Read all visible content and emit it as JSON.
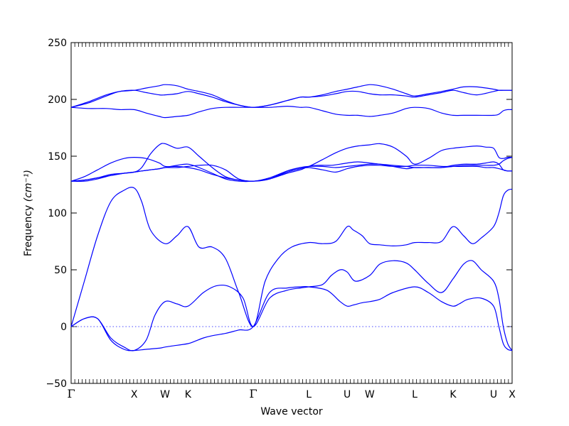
{
  "chart_data": {
    "type": "line",
    "xlabel": "Wave vector",
    "ylabel": "Frequency",
    "ylabel_unit": "(cm⁻¹)",
    "ylim": [
      -50,
      250
    ],
    "yticks": [
      -50,
      0,
      50,
      100,
      150,
      200,
      250
    ],
    "ytick_labels": [
      "−50",
      "0",
      "50",
      "100",
      "150",
      "200",
      "250"
    ],
    "xlim": [
      0,
      10
    ],
    "qpoints": [
      {
        "label": "Γ",
        "x": 0.0
      },
      {
        "label": "X",
        "x": 1.43
      },
      {
        "label": "W",
        "x": 2.13
      },
      {
        "label": "K",
        "x": 2.65
      },
      {
        "label": "Γ",
        "x": 4.13
      },
      {
        "label": "L",
        "x": 5.39
      },
      {
        "label": "U",
        "x": 6.26
      },
      {
        "label": "W",
        "x": 6.77
      },
      {
        "label": "L",
        "x": 7.79
      },
      {
        "label": "K",
        "x": 8.66
      },
      {
        "label": "U",
        "x": 9.58
      },
      {
        "label": "X",
        "x": 10.0
      }
    ],
    "zero_line": {
      "y": 0,
      "style": "dotted"
    },
    "series_color": "#0000ff",
    "bands": [
      {
        "x": [
          0,
          0.3,
          0.6,
          0.9,
          1.2,
          1.43,
          1.7,
          2.0,
          2.13,
          2.3,
          2.65,
          2.8,
          3.0,
          3.2,
          3.5,
          3.8,
          4.13,
          4.5,
          4.9,
          5.2,
          5.39,
          5.8,
          6.1,
          6.26,
          6.4,
          6.6,
          6.77,
          7.0,
          7.3,
          7.79,
          8.1,
          8.4,
          8.66,
          8.8,
          9.0,
          9.3,
          9.58,
          9.7,
          9.8,
          9.9,
          10.0
        ],
        "values": [
          0,
          7,
          7,
          -12,
          -20,
          -21,
          -20,
          -19,
          -18,
          -17,
          -15,
          -13,
          -10,
          -8,
          -6,
          -3,
          0,
          30,
          34,
          35,
          35,
          32,
          22,
          18,
          19,
          21,
          22,
          24,
          30,
          35,
          30,
          22,
          18,
          20,
          24,
          25,
          18,
          0,
          -15,
          -20,
          -21
        ]
      },
      {
        "x": [
          0,
          0.3,
          0.6,
          0.9,
          1.2,
          1.43,
          1.7,
          1.9,
          2.13,
          2.4,
          2.65,
          3.0,
          3.3,
          3.6,
          3.9,
          4.13,
          4.5,
          4.9,
          5.2,
          5.39,
          5.7,
          5.9,
          6.1,
          6.26,
          6.45,
          6.77,
          7.0,
          7.3,
          7.6,
          7.79,
          8.1,
          8.4,
          8.66,
          8.9,
          9.1,
          9.3,
          9.58,
          9.7,
          9.8,
          9.9,
          10.0
        ],
        "values": [
          0,
          7,
          7,
          -10,
          -18,
          -21,
          -12,
          10,
          22,
          20,
          18,
          30,
          36,
          35,
          25,
          0,
          25,
          32,
          34,
          35,
          37,
          45,
          50,
          48,
          40,
          45,
          55,
          58,
          56,
          50,
          38,
          30,
          42,
          55,
          58,
          50,
          40,
          25,
          0,
          -15,
          -21
        ]
      },
      {
        "x": [
          0,
          0.3,
          0.6,
          0.9,
          1.2,
          1.43,
          1.6,
          1.8,
          2.13,
          2.4,
          2.65,
          2.9,
          3.2,
          3.5,
          3.8,
          4.13,
          4.4,
          4.7,
          5.0,
          5.39,
          5.7,
          6.0,
          6.26,
          6.4,
          6.6,
          6.77,
          7.0,
          7.3,
          7.6,
          7.79,
          8.1,
          8.4,
          8.66,
          8.9,
          9.1,
          9.3,
          9.58,
          9.7,
          9.8,
          9.9,
          10.0
        ],
        "values": [
          0,
          40,
          80,
          110,
          120,
          122,
          110,
          85,
          73,
          80,
          88,
          70,
          70,
          60,
          30,
          0,
          40,
          60,
          70,
          74,
          73,
          75,
          88,
          85,
          80,
          73,
          72,
          71,
          72,
          74,
          74,
          75,
          88,
          80,
          73,
          78,
          88,
          100,
          115,
          120,
          121
        ]
      },
      {
        "x": [
          0,
          0.3,
          0.6,
          0.9,
          1.2,
          1.43,
          1.6,
          1.8,
          2.0,
          2.13,
          2.4,
          2.65,
          2.9,
          3.2,
          3.5,
          3.8,
          4.13,
          4.5,
          4.9,
          5.2,
          5.39,
          5.7,
          6.0,
          6.26,
          6.5,
          6.77,
          7.0,
          7.3,
          7.6,
          7.79,
          8.1,
          8.4,
          8.66,
          8.9,
          9.2,
          9.4,
          9.58,
          9.7,
          9.8,
          9.9,
          10.0
        ],
        "values": [
          128,
          128,
          130,
          133,
          135,
          136,
          137,
          138,
          139,
          140,
          140,
          141,
          142,
          142,
          138,
          130,
          128,
          130,
          137,
          140,
          141,
          141,
          140,
          141,
          142,
          143,
          143,
          142,
          141,
          140,
          140,
          140,
          142,
          143,
          143,
          144,
          145,
          143,
          138,
          137,
          137
        ]
      },
      {
        "x": [
          0,
          0.3,
          0.6,
          0.9,
          1.2,
          1.43,
          1.6,
          1.8,
          2.0,
          2.13,
          2.4,
          2.65,
          2.9,
          3.2,
          3.5,
          3.8,
          4.13,
          4.5,
          4.9,
          5.2,
          5.39,
          5.7,
          6.0,
          6.26,
          6.5,
          6.77,
          7.0,
          7.3,
          7.6,
          7.79,
          8.1,
          8.4,
          8.66,
          8.9,
          9.2,
          9.4,
          9.58,
          9.7,
          9.8,
          9.9,
          10.0
        ],
        "values": [
          128,
          129,
          131,
          134,
          135,
          136,
          137,
          138,
          139,
          140,
          142,
          143,
          140,
          135,
          130,
          128,
          128,
          130,
          136,
          139,
          140,
          138,
          136,
          139,
          141,
          142,
          142,
          141,
          141,
          142,
          142,
          141,
          141,
          141,
          141,
          140,
          140,
          139,
          138,
          137,
          137
        ]
      },
      {
        "x": [
          0,
          0.3,
          0.6,
          0.9,
          1.2,
          1.43,
          1.7,
          2.0,
          2.13,
          2.4,
          2.65,
          2.9,
          3.2,
          3.5,
          3.8,
          4.13,
          4.5,
          4.9,
          5.2,
          5.39,
          5.6,
          5.9,
          6.1,
          6.26,
          6.5,
          6.77,
          7.0,
          7.3,
          7.6,
          7.79,
          8.1,
          8.4,
          8.66,
          8.9,
          9.2,
          9.4,
          9.58,
          9.7,
          9.8,
          9.9,
          10.0
        ],
        "values": [
          128,
          132,
          138,
          144,
          148,
          149,
          148,
          144,
          141,
          141,
          140,
          138,
          134,
          131,
          129,
          128,
          130,
          135,
          138,
          141,
          142,
          142,
          143,
          144,
          145,
          144,
          143,
          141,
          139,
          140,
          140,
          140,
          141,
          142,
          142,
          142,
          142,
          143,
          146,
          148,
          149
        ]
      },
      {
        "x": [
          0,
          0.3,
          0.6,
          0.9,
          1.2,
          1.43,
          1.6,
          1.8,
          2.0,
          2.13,
          2.4,
          2.65,
          2.9,
          3.2,
          3.5,
          3.8,
          4.13,
          4.5,
          4.9,
          5.2,
          5.39,
          5.7,
          6.0,
          6.26,
          6.5,
          6.77,
          7.0,
          7.3,
          7.6,
          7.79,
          8.1,
          8.4,
          8.66,
          8.9,
          9.2,
          9.4,
          9.58,
          9.7,
          9.8,
          9.9,
          10.0
        ],
        "values": [
          128,
          129,
          131,
          133,
          135,
          136,
          140,
          152,
          160,
          161,
          157,
          158,
          150,
          140,
          132,
          129,
          128,
          131,
          137,
          140,
          141,
          147,
          153,
          157,
          159,
          160,
          161,
          158,
          150,
          143,
          148,
          155,
          157,
          158,
          159,
          158,
          157,
          149,
          148,
          149,
          149
        ]
      },
      {
        "x": [
          0,
          0.4,
          0.8,
          1.1,
          1.43,
          1.7,
          2.0,
          2.13,
          2.4,
          2.65,
          2.9,
          3.2,
          3.5,
          3.8,
          4.13,
          4.5,
          4.9,
          5.2,
          5.39,
          5.7,
          6.0,
          6.26,
          6.5,
          6.77,
          7.0,
          7.3,
          7.6,
          7.79,
          8.1,
          8.4,
          8.66,
          8.9,
          9.2,
          9.58,
          9.7,
          9.8,
          9.9,
          10.0
        ],
        "values": [
          193,
          192,
          192,
          191,
          191,
          188,
          185,
          184,
          185,
          186,
          189,
          192,
          193,
          193,
          193,
          193,
          194,
          193,
          193,
          190,
          187,
          186,
          186,
          185,
          186,
          188,
          192,
          193,
          192,
          188,
          186,
          186,
          186,
          186,
          187,
          190,
          191,
          191
        ]
      },
      {
        "x": [
          0,
          0.4,
          0.8,
          1.1,
          1.43,
          1.7,
          2.0,
          2.13,
          2.4,
          2.65,
          2.9,
          3.2,
          3.5,
          3.8,
          4.13,
          4.5,
          4.9,
          5.2,
          5.39,
          5.7,
          6.0,
          6.26,
          6.5,
          6.77,
          7.0,
          7.3,
          7.6,
          7.79,
          8.1,
          8.4,
          8.66,
          8.9,
          9.2,
          9.58,
          9.7,
          9.8,
          9.9,
          10.0
        ],
        "values": [
          193,
          197,
          203,
          207,
          208,
          206,
          204,
          204,
          205,
          207,
          205,
          202,
          198,
          195,
          193,
          195,
          199,
          202,
          202,
          203,
          205,
          207,
          207,
          205,
          204,
          204,
          203,
          202,
          204,
          206,
          208,
          206,
          204,
          207,
          208,
          208,
          208,
          208
        ]
      },
      {
        "x": [
          0,
          0.4,
          0.8,
          1.1,
          1.43,
          1.7,
          2.0,
          2.13,
          2.4,
          2.65,
          2.9,
          3.2,
          3.5,
          3.8,
          4.13,
          4.5,
          4.9,
          5.2,
          5.39,
          5.7,
          6.0,
          6.26,
          6.5,
          6.77,
          7.0,
          7.3,
          7.6,
          7.79,
          8.1,
          8.4,
          8.66,
          8.9,
          9.2,
          9.58,
          9.7,
          9.8,
          9.9,
          10.0
        ],
        "values": [
          193,
          198,
          204,
          207,
          208,
          210,
          212,
          213,
          212,
          209,
          207,
          204,
          199,
          195,
          193,
          195,
          199,
          202,
          202,
          204,
          207,
          209,
          211,
          213,
          212,
          209,
          205,
          203,
          205,
          207,
          209,
          211,
          211,
          209,
          208,
          208,
          208,
          208
        ]
      }
    ]
  }
}
